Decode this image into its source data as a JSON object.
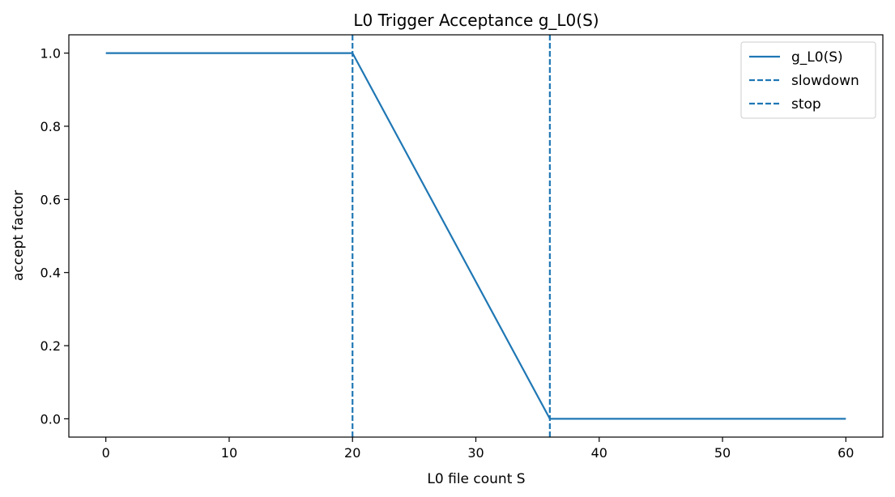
{
  "chart_data": {
    "type": "line",
    "title": "L0 Trigger Acceptance g_L0(S)",
    "xlabel": "L0 file count S",
    "ylabel": "accept factor",
    "xlim": [
      -3,
      63
    ],
    "ylim": [
      -0.05,
      1.05
    ],
    "xticks": [
      0,
      10,
      20,
      30,
      40,
      50,
      60
    ],
    "yticks": [
      0.0,
      0.2,
      0.4,
      0.6,
      0.8,
      1.0
    ],
    "xtick_labels": [
      "0",
      "10",
      "20",
      "30",
      "40",
      "50",
      "60"
    ],
    "ytick_labels": [
      "0.0",
      "0.2",
      "0.4",
      "0.6",
      "0.8",
      "1.0"
    ],
    "grid": false,
    "legend_position": "top-right",
    "series": [
      {
        "name": "g_L0(S)",
        "style": "solid",
        "color": "#1f77b4",
        "x": [
          0,
          20,
          36,
          60
        ],
        "y": [
          1.0,
          1.0,
          0.0,
          0.0
        ]
      }
    ],
    "vlines": [
      {
        "name": "slowdown",
        "x": 20,
        "style": "dashed",
        "color": "#1f77b4"
      },
      {
        "name": "stop",
        "x": 36,
        "style": "dashed",
        "color": "#1f77b4"
      }
    ]
  }
}
